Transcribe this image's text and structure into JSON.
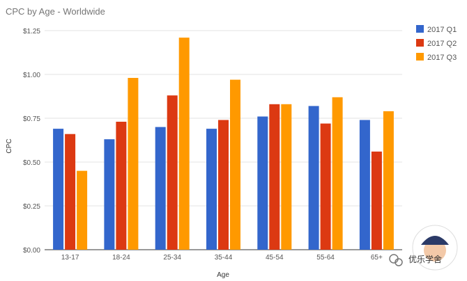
{
  "chart_data": {
    "type": "bar",
    "title": "CPC by Age - Worldwide",
    "xlabel": "Age",
    "ylabel": "CPC",
    "categories": [
      "13-17",
      "18-24",
      "25-34",
      "35-44",
      "45-54",
      "55-64",
      "65+"
    ],
    "series": [
      {
        "name": "2017 Q1",
        "color": "#3366cc",
        "values": [
          0.69,
          0.63,
          0.7,
          0.69,
          0.76,
          0.82,
          0.74
        ]
      },
      {
        "name": "2017 Q2",
        "color": "#dc3912",
        "values": [
          0.66,
          0.73,
          0.88,
          0.74,
          0.83,
          0.72,
          0.56
        ]
      },
      {
        "name": "2017 Q3",
        "color": "#ff9900",
        "values": [
          0.45,
          0.98,
          1.21,
          0.97,
          0.83,
          0.87,
          0.79
        ]
      }
    ],
    "ylim": [
      0,
      1.25
    ],
    "yticks": [
      0,
      0.25,
      0.5,
      0.75,
      1.0,
      1.25
    ],
    "ytick_labels": [
      "$0.00",
      "$0.25",
      "$0.50",
      "$0.75",
      "$1.00",
      "$1.25"
    ],
    "grid": true,
    "legend_position": "right"
  },
  "watermark": {
    "text": "优乐学舍"
  }
}
